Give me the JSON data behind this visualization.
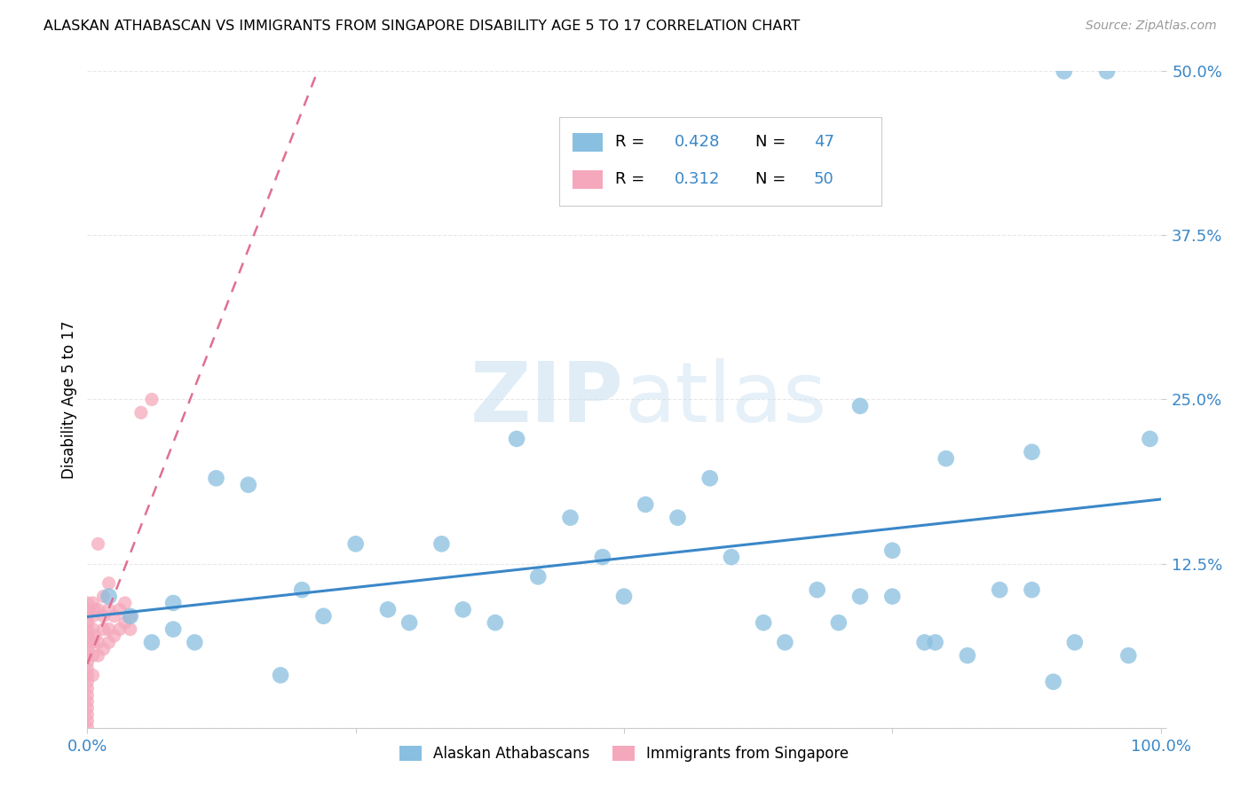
{
  "title": "ALASKAN ATHABASCAN VS IMMIGRANTS FROM SINGAPORE DISABILITY AGE 5 TO 17 CORRELATION CHART",
  "source": "Source: ZipAtlas.com",
  "ylabel": "Disability Age 5 to 17",
  "xlim": [
    0,
    1.0
  ],
  "ylim": [
    0,
    0.5
  ],
  "xticks": [
    0.0,
    0.25,
    0.5,
    0.75,
    1.0
  ],
  "yticks": [
    0.0,
    0.125,
    0.25,
    0.375,
    0.5
  ],
  "background_color": "#ffffff",
  "grid_color": "#e8e8e8",
  "blue_color": "#89bfe0",
  "blue_line_color": "#3a87c8",
  "pink_color": "#f5a8bc",
  "pink_line_color": "#e07090",
  "blue_text_color": "#3a87c8",
  "legend_R_blue": "0.428",
  "legend_N_blue": "47",
  "legend_R_pink": "0.312",
  "legend_N_pink": "50",
  "blue_label": "Alaskan Athabascans",
  "pink_label": "Immigrants from Singapore",
  "blue_x": [
    0.02,
    0.04,
    0.06,
    0.08,
    0.08,
    0.1,
    0.12,
    0.15,
    0.18,
    0.2,
    0.22,
    0.25,
    0.28,
    0.3,
    0.33,
    0.35,
    0.38,
    0.4,
    0.42,
    0.45,
    0.48,
    0.5,
    0.52,
    0.55,
    0.58,
    0.6,
    0.63,
    0.65,
    0.68,
    0.7,
    0.72,
    0.75,
    0.78,
    0.8,
    0.82,
    0.85,
    0.88,
    0.9,
    0.92,
    0.95,
    0.72,
    0.75,
    0.88,
    0.91,
    0.97,
    0.99,
    0.79
  ],
  "blue_y": [
    0.1,
    0.085,
    0.065,
    0.095,
    0.075,
    0.065,
    0.19,
    0.185,
    0.04,
    0.105,
    0.085,
    0.14,
    0.09,
    0.08,
    0.14,
    0.09,
    0.08,
    0.22,
    0.115,
    0.16,
    0.13,
    0.1,
    0.17,
    0.16,
    0.19,
    0.13,
    0.08,
    0.065,
    0.105,
    0.08,
    0.245,
    0.135,
    0.065,
    0.205,
    0.055,
    0.105,
    0.105,
    0.035,
    0.065,
    0.5,
    0.1,
    0.1,
    0.21,
    0.5,
    0.055,
    0.22,
    0.065
  ],
  "pink_x": [
    0.0,
    0.0,
    0.0,
    0.0,
    0.0,
    0.0,
    0.0,
    0.0,
    0.0,
    0.0,
    0.0,
    0.0,
    0.0,
    0.0,
    0.0,
    0.0,
    0.0,
    0.0,
    0.0,
    0.0,
    0.005,
    0.005,
    0.005,
    0.005,
    0.005,
    0.005,
    0.007,
    0.007,
    0.01,
    0.01,
    0.01,
    0.01,
    0.015,
    0.015,
    0.015,
    0.015,
    0.02,
    0.02,
    0.02,
    0.02,
    0.025,
    0.025,
    0.03,
    0.03,
    0.035,
    0.035,
    0.04,
    0.04,
    0.05,
    0.06
  ],
  "pink_y": [
    0.0,
    0.005,
    0.01,
    0.015,
    0.02,
    0.025,
    0.03,
    0.035,
    0.04,
    0.045,
    0.05,
    0.055,
    0.06,
    0.065,
    0.07,
    0.075,
    0.08,
    0.085,
    0.09,
    0.095,
    0.04,
    0.055,
    0.065,
    0.075,
    0.085,
    0.095,
    0.07,
    0.09,
    0.055,
    0.065,
    0.09,
    0.14,
    0.06,
    0.075,
    0.085,
    0.1,
    0.065,
    0.075,
    0.09,
    0.11,
    0.07,
    0.085,
    0.075,
    0.09,
    0.08,
    0.095,
    0.075,
    0.085,
    0.24,
    0.25
  ]
}
